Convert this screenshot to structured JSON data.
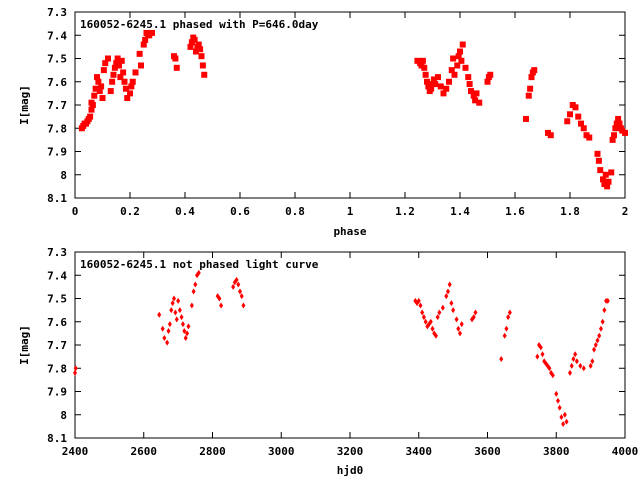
{
  "colors": {
    "points": "#ff0000",
    "axes": "#000000",
    "background": "#ffffff"
  },
  "chart_data": [
    {
      "type": "scatter",
      "title": "160052-6245.1 phased with P=646.0day",
      "xlabel": "phase",
      "ylabel": "I[mag]",
      "xlim": [
        0,
        2
      ],
      "ylim": [
        7.3,
        8.1
      ],
      "y_inverted": true,
      "grid": false,
      "marker": "filled-square",
      "x_ticks": [
        0,
        0.2,
        0.4,
        0.6,
        0.8,
        1,
        1.2,
        1.4,
        1.6,
        1.8,
        2
      ],
      "x_tick_labels": [
        "0",
        "0.2",
        "0.4",
        "0.6",
        "0.8",
        "1",
        "1.2",
        "1.4",
        "1.6",
        "1.8",
        "2"
      ],
      "y_ticks": [
        7.3,
        7.4,
        7.5,
        7.6,
        7.7,
        7.8,
        7.9,
        8.0,
        8.1
      ],
      "y_tick_labels": [
        "7.3",
        "7.4",
        "7.5",
        "7.6",
        "7.7",
        "7.8",
        "7.9",
        "8",
        "8.1"
      ],
      "x": [
        0.025,
        0.03,
        0.035,
        0.04,
        0.045,
        0.05,
        0.055,
        0.06,
        0.06,
        0.065,
        0.07,
        0.075,
        0.08,
        0.085,
        0.09,
        0.095,
        0.1,
        0.105,
        0.11,
        0.12,
        0.13,
        0.135,
        0.14,
        0.145,
        0.15,
        0.155,
        0.16,
        0.165,
        0.17,
        0.175,
        0.18,
        0.185,
        0.19,
        0.2,
        0.205,
        0.21,
        0.22,
        0.235,
        0.24,
        0.25,
        0.255,
        0.26,
        0.265,
        0.27,
        0.28,
        0.36,
        0.365,
        0.37,
        0.42,
        0.425,
        0.43,
        0.435,
        0.44,
        0.445,
        0.45,
        0.455,
        0.46,
        0.465,
        0.47,
        1.245,
        1.255,
        1.26,
        1.265,
        1.27,
        1.275,
        1.28,
        1.285,
        1.29,
        1.295,
        1.3,
        1.305,
        1.31,
        1.32,
        1.33,
        1.34,
        1.35,
        1.36,
        1.37,
        1.375,
        1.38,
        1.39,
        1.395,
        1.4,
        1.405,
        1.41,
        1.42,
        1.43,
        1.435,
        1.44,
        1.45,
        1.455,
        1.46,
        1.47,
        1.5,
        1.505,
        1.51,
        1.64,
        1.65,
        1.655,
        1.66,
        1.665,
        1.67,
        1.72,
        1.73,
        1.79,
        1.8,
        1.81,
        1.82,
        1.83,
        1.84,
        1.85,
        1.86,
        1.87,
        1.9,
        1.905,
        1.91,
        1.92,
        1.925,
        1.93,
        1.935,
        1.94,
        1.95,
        1.955,
        1.96,
        1.965,
        1.97,
        1.975,
        1.98,
        1.985,
        1.99,
        2.0
      ],
      "y": [
        7.8,
        7.79,
        7.78,
        7.78,
        7.77,
        7.76,
        7.75,
        7.72,
        7.69,
        7.7,
        7.66,
        7.63,
        7.58,
        7.6,
        7.64,
        7.62,
        7.67,
        7.55,
        7.52,
        7.5,
        7.64,
        7.6,
        7.57,
        7.54,
        7.52,
        7.5,
        7.53,
        7.58,
        7.51,
        7.56,
        7.6,
        7.63,
        7.67,
        7.65,
        7.62,
        7.6,
        7.56,
        7.48,
        7.53,
        7.44,
        7.42,
        7.39,
        7.4,
        7.4,
        7.39,
        7.49,
        7.5,
        7.54,
        7.45,
        7.43,
        7.41,
        7.42,
        7.47,
        7.45,
        7.44,
        7.46,
        7.49,
        7.53,
        7.57,
        7.51,
        7.52,
        7.53,
        7.51,
        7.54,
        7.57,
        7.6,
        7.62,
        7.64,
        7.63,
        7.61,
        7.59,
        7.61,
        7.58,
        7.62,
        7.65,
        7.63,
        7.6,
        7.55,
        7.5,
        7.57,
        7.53,
        7.49,
        7.47,
        7.51,
        7.44,
        7.54,
        7.58,
        7.61,
        7.64,
        7.66,
        7.68,
        7.65,
        7.69,
        7.6,
        7.58,
        7.57,
        7.76,
        7.66,
        7.63,
        7.58,
        7.56,
        7.55,
        7.82,
        7.83,
        7.77,
        7.74,
        7.7,
        7.71,
        7.75,
        7.78,
        7.8,
        7.83,
        7.84,
        7.91,
        7.94,
        7.98,
        8.02,
        8.04,
        8.0,
        8.05,
        8.03,
        7.99,
        7.85,
        7.83,
        7.8,
        7.78,
        7.76,
        7.78,
        7.8,
        7.81,
        7.82
      ]
    },
    {
      "type": "scatter",
      "title": "160052-6245.1 not phased light curve",
      "xlabel": "hjd0",
      "ylabel": "I[mag]",
      "xlim": [
        2400,
        4000
      ],
      "ylim": [
        7.3,
        8.1
      ],
      "y_inverted": true,
      "grid": false,
      "marker": "small-diamond",
      "x_ticks": [
        2400,
        2600,
        2800,
        3000,
        3200,
        3400,
        3600,
        3800,
        4000
      ],
      "x_tick_labels": [
        "2400",
        "2600",
        "2800",
        "3000",
        "3200",
        "3400",
        "3600",
        "3800",
        "4000"
      ],
      "y_ticks": [
        7.3,
        7.4,
        7.5,
        7.6,
        7.7,
        7.8,
        7.9,
        8.0,
        8.1
      ],
      "y_tick_labels": [
        "7.3",
        "7.4",
        "7.5",
        "7.6",
        "7.7",
        "7.8",
        "7.9",
        "8",
        "8.1"
      ],
      "x": [
        2400,
        2402,
        2645,
        2655,
        2660,
        2668,
        2672,
        2676,
        2680,
        2684,
        2688,
        2692,
        2696,
        2700,
        2705,
        2710,
        2714,
        2718,
        2722,
        2726,
        2730,
        2740,
        2745,
        2750,
        2755,
        2760,
        2815,
        2820,
        2825,
        2860,
        2865,
        2870,
        2875,
        2880,
        2885,
        2890,
        3390,
        3395,
        3400,
        3405,
        3410,
        3415,
        3420,
        3425,
        3430,
        3435,
        3440,
        3445,
        3450,
        3455,
        3460,
        3470,
        3480,
        3485,
        3490,
        3495,
        3500,
        3510,
        3515,
        3520,
        3525,
        3555,
        3560,
        3565,
        3640,
        3650,
        3655,
        3660,
        3665,
        3745,
        3750,
        3755,
        3760,
        3765,
        3770,
        3775,
        3780,
        3785,
        3790,
        3800,
        3805,
        3810,
        3815,
        3820,
        3825,
        3830,
        3840,
        3845,
        3850,
        3855,
        3860,
        3870,
        3880,
        3900,
        3905,
        3910,
        3915,
        3920,
        3925,
        3930,
        3935,
        3940,
        3945,
        3950
      ],
      "y": [
        7.82,
        7.8,
        7.57,
        7.63,
        7.67,
        7.69,
        7.64,
        7.61,
        7.55,
        7.52,
        7.5,
        7.56,
        7.59,
        7.51,
        7.55,
        7.58,
        7.61,
        7.64,
        7.67,
        7.65,
        7.62,
        7.53,
        7.47,
        7.44,
        7.4,
        7.39,
        7.49,
        7.5,
        7.53,
        7.45,
        7.43,
        7.42,
        7.44,
        7.47,
        7.49,
        7.53,
        7.51,
        7.52,
        7.51,
        7.53,
        7.56,
        7.58,
        7.6,
        7.62,
        7.61,
        7.6,
        7.63,
        7.65,
        7.66,
        7.58,
        7.56,
        7.54,
        7.49,
        7.47,
        7.44,
        7.52,
        7.55,
        7.59,
        7.63,
        7.65,
        7.61,
        7.59,
        7.58,
        7.56,
        7.76,
        7.66,
        7.63,
        7.58,
        7.56,
        7.75,
        7.7,
        7.71,
        7.74,
        7.77,
        7.78,
        7.79,
        7.8,
        7.82,
        7.83,
        7.91,
        7.94,
        7.97,
        8.01,
        8.04,
        8.0,
        8.03,
        7.82,
        7.79,
        7.76,
        7.74,
        7.77,
        7.79,
        7.8,
        7.79,
        7.77,
        7.72,
        7.7,
        7.68,
        7.66,
        7.63,
        7.6,
        7.55,
        7.51,
        7.51
      ]
    }
  ]
}
